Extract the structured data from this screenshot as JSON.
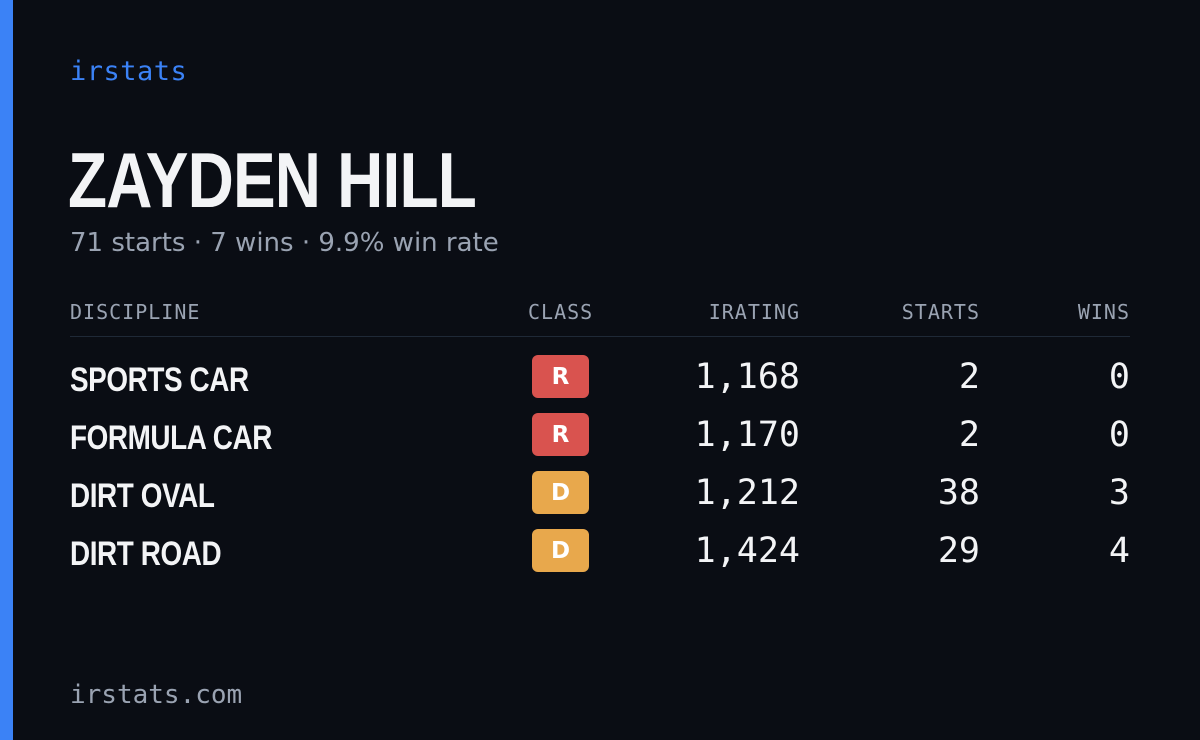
{
  "brand": "irstats",
  "driver": {
    "name": "ZAYDEN HILL",
    "summary": "71 starts · 7 wins · 9.9% win rate"
  },
  "table": {
    "headers": {
      "discipline": "DISCIPLINE",
      "class": "CLASS",
      "irating": "IRATING",
      "starts": "STARTS",
      "wins": "WINS"
    },
    "rows": [
      {
        "discipline": "SPORTS CAR",
        "class": "R",
        "class_color": "#d9534f",
        "irating": "1,168",
        "starts": "2",
        "wins": "0"
      },
      {
        "discipline": "FORMULA CAR",
        "class": "R",
        "class_color": "#d9534f",
        "irating": "1,170",
        "starts": "2",
        "wins": "0"
      },
      {
        "discipline": "DIRT OVAL",
        "class": "D",
        "class_color": "#e8a84c",
        "irating": "1,212",
        "starts": "38",
        "wins": "3"
      },
      {
        "discipline": "DIRT ROAD",
        "class": "D",
        "class_color": "#e8a84c",
        "irating": "1,424",
        "starts": "29",
        "wins": "4"
      }
    ]
  },
  "footer": "irstats.com",
  "colors": {
    "background": "#0a0d14",
    "accent": "#3b82f6",
    "text": "#f3f4f6",
    "muted": "#9aa3b2"
  }
}
